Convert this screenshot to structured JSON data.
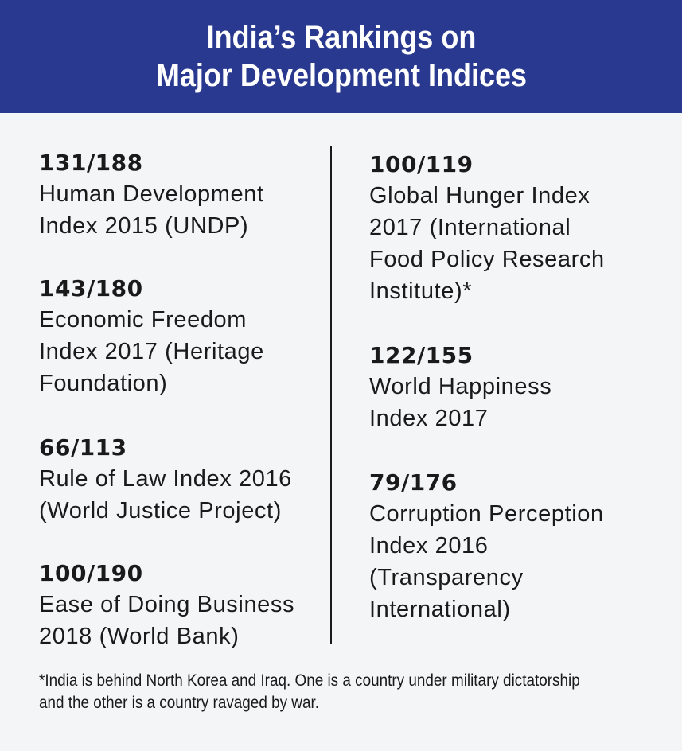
{
  "header": {
    "title_line1": "India’s Rankings on",
    "title_line2": "Major Development Indices"
  },
  "left_column": [
    {
      "rank": "131/188",
      "label": "Human Development\nIndex 2015 (UNDP)"
    },
    {
      "rank": "143/180",
      "label": "Economic Freedom\nIndex 2017 (Heritage\nFoundation)"
    },
    {
      "rank": "66/113",
      "label": "Rule of Law Index 2016\n(World Justice Project)"
    },
    {
      "rank": "100/190",
      "label": "Ease of Doing Business\n2018 (World Bank)"
    }
  ],
  "right_column": [
    {
      "rank": "100/119",
      "label": "Global Hunger Index\n2017 (International\nFood Policy Research\nInstitute)*"
    },
    {
      "rank": "122/155",
      "label": "World Happiness\nIndex 2017"
    },
    {
      "rank": "79/176",
      "label": "Corruption Perception\nIndex 2016\n(Transparency\nInternational)"
    }
  ],
  "footnote": "*India is behind North Korea and Iraq. One is a country under military dictatorship and the other is a country ravaged by war.",
  "colors": {
    "header_bg": "#2a3990",
    "page_bg": "#f4f5f7",
    "text": "#1a1a1a"
  }
}
